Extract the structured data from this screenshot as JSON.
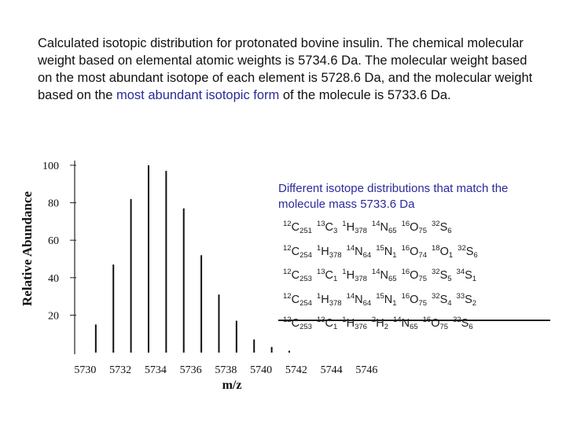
{
  "caption": {
    "text_part1": "Calculated isotopic distribution for protonated bovine insulin.  The chemical molecular weight based on elemental atomic weights is 5734.6 Da. The molecular weight based on the most abundant isotope of each element is 5728.6 Da, and the molecular weight based on the ",
    "text_highlight": "most abundant isotopic form",
    "text_part2": " of the molecule is 5733.6 Da."
  },
  "overlay": {
    "title": "Different isotope distributions that match the molecule mass 5733.6 Da",
    "formulas": [
      [
        [
          "12",
          "C",
          "251"
        ],
        [
          "13",
          "C",
          "3"
        ],
        [
          "1",
          "H",
          "378"
        ],
        [
          "14",
          "N",
          "65"
        ],
        [
          "16",
          "O",
          "75"
        ],
        [
          "32",
          "S",
          "6"
        ]
      ],
      [
        [
          "12",
          "C",
          "254"
        ],
        [
          "1",
          "H",
          "378"
        ],
        [
          "14",
          "N",
          "64"
        ],
        [
          "15",
          "N",
          "1"
        ],
        [
          "16",
          "O",
          "74"
        ],
        [
          "18",
          "O",
          "1"
        ],
        [
          "32",
          "S",
          "6"
        ]
      ],
      [
        [
          "12",
          "C",
          "253"
        ],
        [
          "13",
          "C",
          "1"
        ],
        [
          "1",
          "H",
          "378"
        ],
        [
          "14",
          "N",
          "65"
        ],
        [
          "16",
          "O",
          "75"
        ],
        [
          "32",
          "S",
          "5"
        ],
        [
          "34",
          "S",
          "1"
        ]
      ],
      [
        [
          "12",
          "C",
          "254"
        ],
        [
          "1",
          "H",
          "378"
        ],
        [
          "14",
          "N",
          "64"
        ],
        [
          "15",
          "N",
          "1"
        ],
        [
          "16",
          "O",
          "75"
        ],
        [
          "32",
          "S",
          "4"
        ],
        [
          "33",
          "S",
          "2"
        ]
      ],
      [
        [
          "12",
          "C",
          "253"
        ],
        [
          "13",
          "C",
          "1"
        ],
        [
          "1",
          "H",
          "376"
        ],
        [
          "2",
          "H",
          "2"
        ],
        [
          "14",
          "N",
          "65"
        ],
        [
          "16",
          "O",
          "75"
        ],
        [
          "32",
          "S",
          "6"
        ]
      ]
    ]
  },
  "chart_data": {
    "type": "bar",
    "xlabel": "m/z",
    "ylabel": "Relative Abundance",
    "ylim": [
      0,
      100
    ],
    "xlim": [
      5729.4,
      5747.5
    ],
    "yticks": [
      20,
      40,
      60,
      80,
      100
    ],
    "xticks": [
      5730,
      5732,
      5734,
      5736,
      5738,
      5740,
      5742,
      5744,
      5746
    ],
    "x": [
      5730.6,
      5731.6,
      5732.6,
      5733.6,
      5734.6,
      5735.6,
      5736.6,
      5737.6,
      5738.6,
      5739.6,
      5740.6,
      5741.6
    ],
    "values": [
      15,
      47,
      82,
      100,
      97,
      77,
      52,
      31,
      17,
      7,
      3,
      1
    ],
    "colors": {
      "bar": "#111111",
      "axis": "#222222",
      "text": "#111111"
    }
  }
}
